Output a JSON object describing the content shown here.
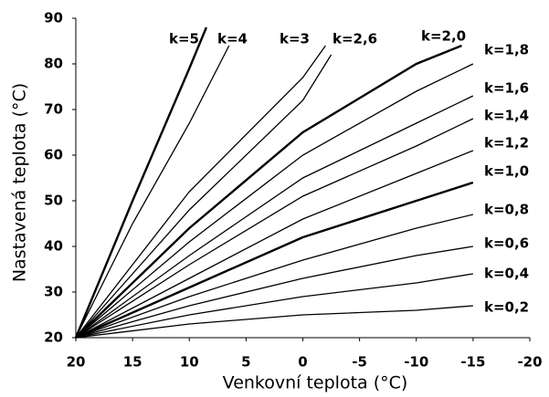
{
  "chart_data": {
    "type": "line",
    "x_label": "Venkovní teplota  (°C)",
    "y_label": "Nastavená teplota  (°C)",
    "xlim": [
      20,
      -20
    ],
    "xticks": [
      20,
      15,
      10,
      5,
      0,
      -5,
      -10,
      -15,
      -20
    ],
    "ylim": [
      20,
      90
    ],
    "yticks": [
      20,
      30,
      40,
      50,
      60,
      70,
      80,
      90
    ],
    "series": [
      {
        "name": "k=5",
        "color": "#000",
        "x": [
          20,
          15,
          10,
          8.5
        ],
        "values": [
          20,
          50,
          79,
          88
        ]
      },
      {
        "name": "k=4",
        "color": "#000",
        "x": [
          20,
          15,
          10,
          6.5
        ],
        "values": [
          20,
          45,
          67,
          84
        ]
      },
      {
        "name": "k=3",
        "color": "#000",
        "x": [
          20,
          10,
          0,
          -2
        ],
        "values": [
          20,
          52,
          77,
          84
        ]
      },
      {
        "name": "k=2,6",
        "color": "#000",
        "x": [
          20,
          10,
          0,
          -2.5
        ],
        "values": [
          20,
          48,
          72,
          82
        ]
      },
      {
        "name": "k=2,0",
        "color": "#000",
        "x": [
          20,
          10,
          0,
          -10,
          -14
        ],
        "values": [
          20,
          44,
          65,
          80,
          84
        ]
      },
      {
        "name": "k=1,8",
        "color": "#000",
        "x": [
          20,
          10,
          0,
          -10,
          -15
        ],
        "values": [
          20,
          41,
          60,
          74,
          80
        ]
      },
      {
        "name": "k=1,6",
        "color": "#000",
        "x": [
          20,
          10,
          0,
          -10,
          -15
        ],
        "values": [
          20,
          38,
          55,
          67,
          73
        ]
      },
      {
        "name": "k=1,4",
        "color": "#000",
        "x": [
          20,
          10,
          0,
          -10,
          -15
        ],
        "values": [
          20,
          36,
          51,
          62,
          68
        ]
      },
      {
        "name": "k=1,2",
        "color": "#000",
        "x": [
          20,
          10,
          0,
          -10,
          -15
        ],
        "values": [
          20,
          33,
          46,
          56,
          61
        ]
      },
      {
        "name": "k=1,0",
        "color": "#000",
        "x": [
          20,
          10,
          0,
          -10,
          -15
        ],
        "values": [
          20,
          31,
          42,
          50,
          54
        ]
      },
      {
        "name": "k=0,8",
        "color": "#000",
        "x": [
          20,
          10,
          0,
          -10,
          -15
        ],
        "values": [
          20,
          29,
          37,
          44,
          47
        ]
      },
      {
        "name": "k=0,6",
        "color": "#000",
        "x": [
          20,
          10,
          0,
          -10,
          -15
        ],
        "values": [
          20,
          27,
          33,
          38,
          40
        ]
      },
      {
        "name": "k=0,4",
        "color": "#000",
        "x": [
          20,
          10,
          0,
          -10,
          -15
        ],
        "values": [
          20,
          25,
          29,
          32,
          34
        ]
      },
      {
        "name": "k=0,2",
        "color": "#000",
        "x": [
          20,
          10,
          0,
          -10,
          -15
        ],
        "values": [
          20,
          23,
          25,
          26,
          27
        ]
      }
    ]
  }
}
